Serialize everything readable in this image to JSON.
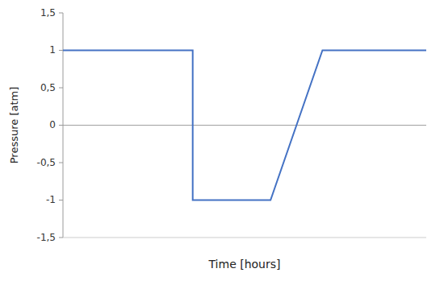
{
  "chart_data": {
    "type": "line",
    "x": [
      0,
      5,
      5,
      6,
      8,
      10,
      10,
      14
    ],
    "values": [
      1,
      1,
      -1,
      -1,
      -1,
      1,
      1,
      1
    ],
    "color": "#4472C4",
    "xlabel": "Time [hours]",
    "ylabel": "Pressure [atm]",
    "xlim": [
      0,
      14
    ],
    "ylim": [
      -1.5,
      1.5
    ],
    "yticks": [
      {
        "value": -1.5,
        "label": "-1,5"
      },
      -1,
      {
        "value": -0.5,
        "label": "-0,5"
      },
      0,
      {
        "value": 0.5,
        "label": "0,5"
      },
      1,
      {
        "value": 1.5,
        "label": "1,5"
      }
    ],
    "grid": false,
    "tick_labels": "y"
  }
}
